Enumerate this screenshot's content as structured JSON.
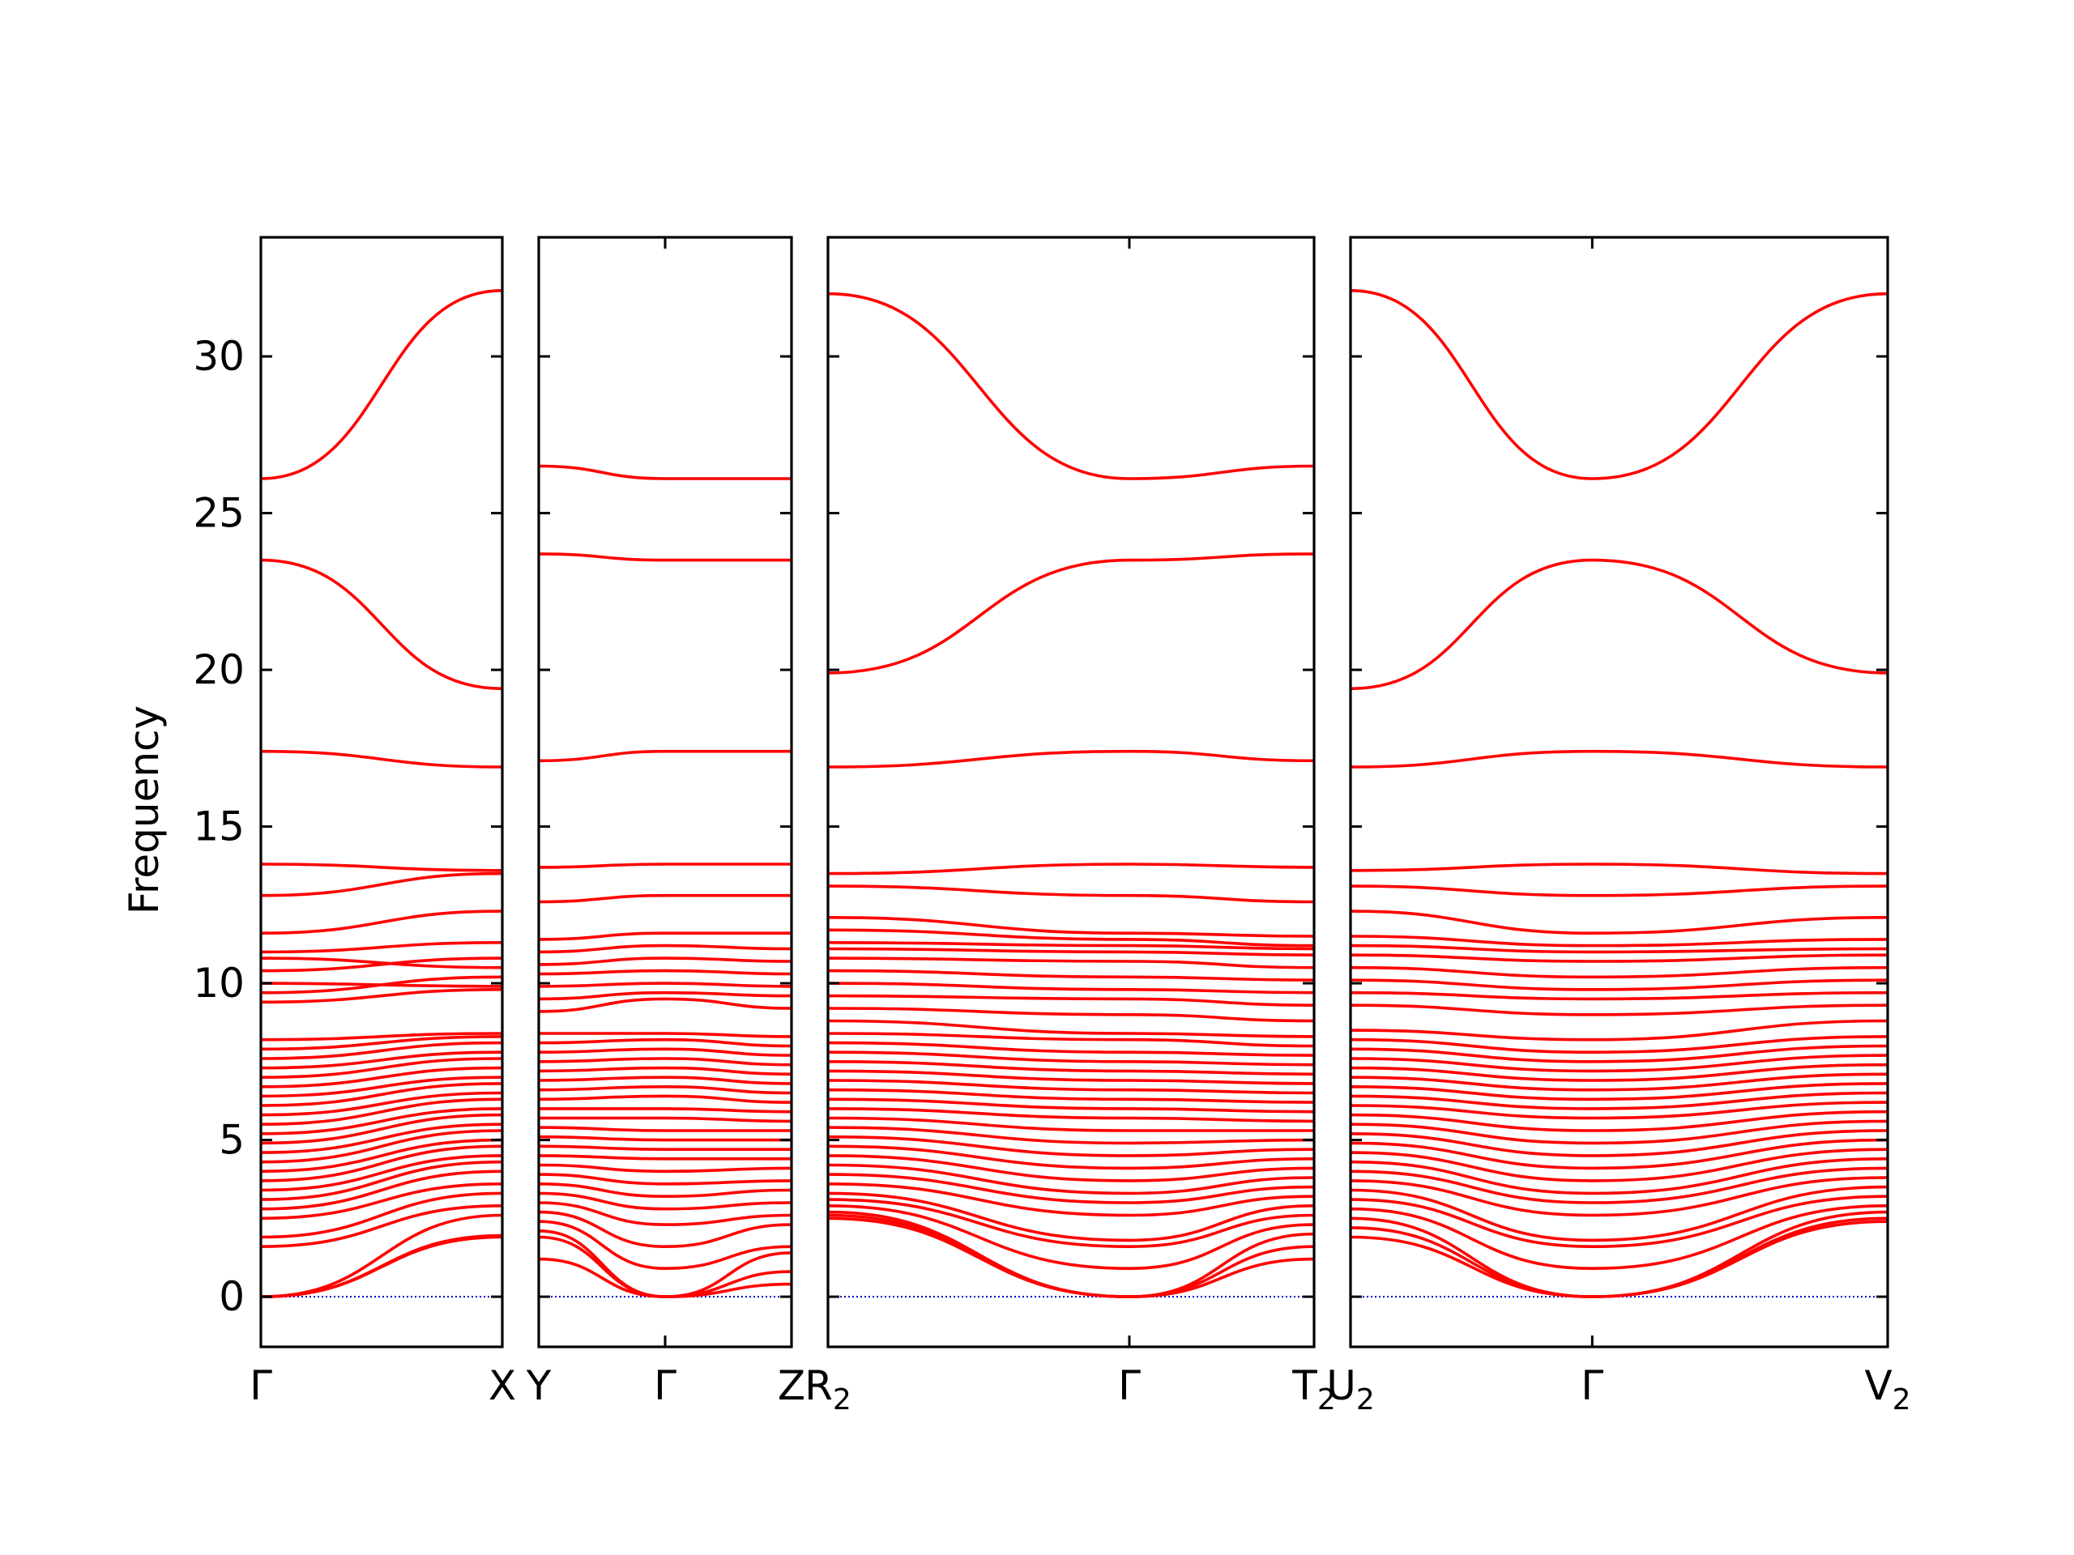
{
  "chart_data": {
    "type": "line",
    "ylabel": "Frequency",
    "xlabel": "",
    "ylim": [
      -1.6,
      33.8
    ],
    "yticks": [
      "0",
      "5",
      "10",
      "15",
      "20",
      "25",
      "30"
    ],
    "grid": false,
    "legend": "none",
    "colors": {
      "bands": "#ff0000",
      "zero_line": "#0000cc",
      "axes": "#000000"
    },
    "panels": [
      {
        "id": "panel-1",
        "ticks": [
          {
            "label": "Γ",
            "sub": ""
          },
          {
            "label": "X",
            "sub": ""
          }
        ],
        "x": [
          0,
          1
        ],
        "series": [
          {
            "values": [
              0,
              1.95
            ]
          },
          {
            "values": [
              0,
              1.9
            ]
          },
          {
            "values": [
              0,
              2.6
            ]
          },
          {
            "values": [
              1.6,
              2.9
            ]
          },
          {
            "values": [
              1.9,
              3.3
            ]
          },
          {
            "values": [
              2.5,
              3.6
            ]
          },
          {
            "values": [
              2.8,
              4.0
            ]
          },
          {
            "values": [
              3.1,
              4.3
            ]
          },
          {
            "values": [
              3.4,
              4.5
            ]
          },
          {
            "values": [
              3.7,
              4.8
            ]
          },
          {
            "values": [
              4.0,
              5.0
            ]
          },
          {
            "values": [
              4.3,
              5.3
            ]
          },
          {
            "values": [
              4.6,
              5.5
            ]
          },
          {
            "values": [
              4.9,
              5.8
            ]
          },
          {
            "values": [
              5.2,
              6.0
            ]
          },
          {
            "values": [
              5.5,
              6.3
            ]
          },
          {
            "values": [
              5.8,
              6.5
            ]
          },
          {
            "values": [
              6.1,
              6.8
            ]
          },
          {
            "values": [
              6.4,
              7.0
            ]
          },
          {
            "values": [
              6.7,
              7.3
            ]
          },
          {
            "values": [
              7.0,
              7.6
            ]
          },
          {
            "values": [
              7.3,
              7.8
            ]
          },
          {
            "values": [
              7.6,
              8.1
            ]
          },
          {
            "values": [
              7.9,
              8.3
            ]
          },
          {
            "values": [
              8.2,
              8.4
            ]
          },
          {
            "values": [
              9.4,
              9.8
            ]
          },
          {
            "values": [
              9.7,
              10.2
            ]
          },
          {
            "values": [
              10.0,
              9.9
            ]
          },
          {
            "values": [
              10.4,
              10.8
            ]
          },
          {
            "values": [
              10.8,
              10.5
            ]
          },
          {
            "values": [
              11.0,
              11.3
            ]
          },
          {
            "values": [
              11.6,
              12.3
            ]
          },
          {
            "values": [
              12.8,
              13.5
            ]
          },
          {
            "values": [
              13.8,
              13.6
            ]
          },
          {
            "values": [
              17.4,
              16.9
            ]
          },
          {
            "values": [
              23.5,
              19.4
            ]
          },
          {
            "values": [
              26.1,
              32.1
            ]
          }
        ]
      },
      {
        "id": "panel-2",
        "ticks": [
          {
            "label": "Y",
            "sub": ""
          },
          {
            "label": "Γ",
            "sub": ""
          },
          {
            "label": "Z",
            "sub": ""
          }
        ],
        "x": [
          0,
          0.5,
          1
        ],
        "series": [
          {
            "values": [
              2.1,
              0,
              1.4
            ]
          },
          {
            "values": [
              1.9,
              0,
              0.8
            ]
          },
          {
            "values": [
              1.2,
              0,
              0.4
            ]
          },
          {
            "values": [
              2.4,
              0.9,
              1.6
            ]
          },
          {
            "values": [
              2.7,
              1.6,
              2.3
            ]
          },
          {
            "values": [
              3.0,
              2.3,
              2.6
            ]
          },
          {
            "values": [
              3.3,
              2.8,
              3.0
            ]
          },
          {
            "values": [
              3.6,
              3.2,
              3.4
            ]
          },
          {
            "values": [
              3.9,
              3.6,
              3.7
            ]
          },
          {
            "values": [
              4.2,
              4.0,
              4.1
            ]
          },
          {
            "values": [
              4.5,
              4.4,
              4.4
            ]
          },
          {
            "values": [
              4.8,
              4.7,
              4.7
            ]
          },
          {
            "values": [
              5.1,
              5.0,
              5.0
            ]
          },
          {
            "values": [
              5.4,
              5.3,
              5.3
            ]
          },
          {
            "values": [
              5.7,
              5.7,
              5.6
            ]
          },
          {
            "values": [
              6.0,
              6.0,
              5.9
            ]
          },
          {
            "values": [
              6.3,
              6.4,
              6.2
            ]
          },
          {
            "values": [
              6.6,
              6.7,
              6.5
            ]
          },
          {
            "values": [
              6.9,
              7.0,
              6.8
            ]
          },
          {
            "values": [
              7.2,
              7.3,
              7.1
            ]
          },
          {
            "values": [
              7.5,
              7.6,
              7.4
            ]
          },
          {
            "values": [
              7.8,
              7.9,
              7.7
            ]
          },
          {
            "values": [
              8.1,
              8.2,
              8.0
            ]
          },
          {
            "values": [
              8.4,
              8.4,
              8.3
            ]
          },
          {
            "values": [
              9.1,
              9.5,
              9.2
            ]
          },
          {
            "values": [
              9.5,
              9.7,
              9.6
            ]
          },
          {
            "values": [
              9.9,
              10.0,
              9.9
            ]
          },
          {
            "values": [
              10.3,
              10.4,
              10.3
            ]
          },
          {
            "values": [
              10.6,
              10.8,
              10.7
            ]
          },
          {
            "values": [
              11.0,
              11.2,
              11.1
            ]
          },
          {
            "values": [
              11.4,
              11.6,
              11.6
            ]
          },
          {
            "values": [
              12.6,
              12.8,
              12.8
            ]
          },
          {
            "values": [
              13.7,
              13.8,
              13.8
            ]
          },
          {
            "values": [
              17.1,
              17.4,
              17.4
            ]
          },
          {
            "values": [
              23.7,
              23.5,
              23.5
            ]
          },
          {
            "values": [
              26.5,
              26.1,
              26.1
            ]
          }
        ]
      },
      {
        "id": "panel-3",
        "ticks": [
          {
            "label": "R",
            "sub": "2"
          },
          {
            "label": "Γ",
            "sub": ""
          },
          {
            "label": "T",
            "sub": "2"
          }
        ],
        "x": [
          0,
          0.62,
          1
        ],
        "series": [
          {
            "values": [
              2.5,
              0,
              2.0
            ]
          },
          {
            "values": [
              2.6,
              0,
              1.6
            ]
          },
          {
            "values": [
              2.7,
              0,
              1.2
            ]
          },
          {
            "values": [
              2.9,
              0.9,
              2.3
            ]
          },
          {
            "values": [
              3.1,
              1.6,
              2.6
            ]
          },
          {
            "values": [
              3.3,
              1.8,
              2.9
            ]
          },
          {
            "values": [
              3.6,
              2.6,
              3.2
            ]
          },
          {
            "values": [
              3.9,
              3.0,
              3.5
            ]
          },
          {
            "values": [
              4.2,
              3.3,
              3.8
            ]
          },
          {
            "values": [
              4.5,
              3.7,
              4.1
            ]
          },
          {
            "values": [
              4.8,
              4.1,
              4.4
            ]
          },
          {
            "values": [
              5.1,
              4.5,
              4.7
            ]
          },
          {
            "values": [
              5.4,
              4.9,
              5.0
            ]
          },
          {
            "values": [
              5.7,
              5.3,
              5.3
            ]
          },
          {
            "values": [
              6.0,
              5.7,
              5.6
            ]
          },
          {
            "values": [
              6.3,
              6.0,
              5.9
            ]
          },
          {
            "values": [
              6.6,
              6.3,
              6.2
            ]
          },
          {
            "values": [
              6.9,
              6.6,
              6.5
            ]
          },
          {
            "values": [
              7.2,
              6.9,
              6.8
            ]
          },
          {
            "values": [
              7.5,
              7.2,
              7.1
            ]
          },
          {
            "values": [
              7.8,
              7.5,
              7.4
            ]
          },
          {
            "values": [
              8.1,
              7.8,
              7.7
            ]
          },
          {
            "values": [
              8.4,
              8.2,
              8.0
            ]
          },
          {
            "values": [
              8.8,
              8.4,
              8.3
            ]
          },
          {
            "values": [
              9.2,
              9.0,
              8.8
            ]
          },
          {
            "values": [
              9.6,
              9.5,
              9.3
            ]
          },
          {
            "values": [
              10.0,
              9.8,
              9.7
            ]
          },
          {
            "values": [
              10.4,
              10.2,
              10.1
            ]
          },
          {
            "values": [
              10.8,
              10.7,
              10.5
            ]
          },
          {
            "values": [
              11.1,
              11.0,
              10.9
            ]
          },
          {
            "values": [
              11.3,
              11.2,
              11.1
            ]
          },
          {
            "values": [
              11.7,
              11.4,
              11.2
            ]
          },
          {
            "values": [
              12.1,
              11.6,
              11.5
            ]
          },
          {
            "values": [
              13.1,
              12.8,
              12.6
            ]
          },
          {
            "values": [
              13.5,
              13.8,
              13.7
            ]
          },
          {
            "values": [
              16.9,
              17.4,
              17.1
            ]
          },
          {
            "values": [
              19.9,
              23.5,
              23.7
            ]
          },
          {
            "values": [
              32.0,
              26.1,
              26.5
            ]
          }
        ]
      },
      {
        "id": "panel-4",
        "ticks": [
          {
            "label": "U",
            "sub": "2"
          },
          {
            "label": "Γ",
            "sub": ""
          },
          {
            "label": "V",
            "sub": "2"
          }
        ],
        "x": [
          0,
          0.45,
          1
        ],
        "series": [
          {
            "values": [
              1.9,
              0,
              2.4
            ]
          },
          {
            "values": [
              2.2,
              0,
              2.5
            ]
          },
          {
            "values": [
              2.5,
              0,
              2.7
            ]
          },
          {
            "values": [
              2.8,
              0.9,
              2.9
            ]
          },
          {
            "values": [
              3.1,
              1.6,
              3.2
            ]
          },
          {
            "values": [
              3.4,
              1.8,
              3.5
            ]
          },
          {
            "values": [
              3.7,
              2.6,
              3.8
            ]
          },
          {
            "values": [
              4.0,
              3.0,
              4.1
            ]
          },
          {
            "values": [
              4.3,
              3.3,
              4.4
            ]
          },
          {
            "values": [
              4.6,
              3.7,
              4.7
            ]
          },
          {
            "values": [
              4.9,
              4.1,
              5.0
            ]
          },
          {
            "values": [
              5.2,
              4.5,
              5.3
            ]
          },
          {
            "values": [
              5.5,
              4.9,
              5.6
            ]
          },
          {
            "values": [
              5.8,
              5.3,
              5.9
            ]
          },
          {
            "values": [
              6.1,
              5.7,
              6.2
            ]
          },
          {
            "values": [
              6.4,
              6.0,
              6.5
            ]
          },
          {
            "values": [
              6.7,
              6.3,
              6.8
            ]
          },
          {
            "values": [
              7.0,
              6.6,
              7.1
            ]
          },
          {
            "values": [
              7.3,
              6.9,
              7.4
            ]
          },
          {
            "values": [
              7.6,
              7.2,
              7.7
            ]
          },
          {
            "values": [
              7.9,
              7.5,
              8.0
            ]
          },
          {
            "values": [
              8.2,
              7.8,
              8.3
            ]
          },
          {
            "values": [
              8.5,
              8.2,
              8.8
            ]
          },
          {
            "values": [
              9.3,
              9.0,
              9.3
            ]
          },
          {
            "values": [
              9.7,
              9.5,
              9.7
            ]
          },
          {
            "values": [
              10.1,
              9.8,
              10.1
            ]
          },
          {
            "values": [
              10.5,
              10.2,
              10.5
            ]
          },
          {
            "values": [
              10.9,
              10.7,
              10.9
            ]
          },
          {
            "values": [
              11.2,
              11.0,
              11.1
            ]
          },
          {
            "values": [
              11.5,
              11.2,
              11.4
            ]
          },
          {
            "values": [
              12.3,
              11.6,
              12.1
            ]
          },
          {
            "values": [
              13.1,
              12.8,
              13.1
            ]
          },
          {
            "values": [
              13.6,
              13.8,
              13.5
            ]
          },
          {
            "values": [
              16.9,
              17.4,
              16.9
            ]
          },
          {
            "values": [
              19.4,
              23.5,
              19.9
            ]
          },
          {
            "values": [
              32.1,
              26.1,
              32.0
            ]
          }
        ]
      }
    ]
  }
}
